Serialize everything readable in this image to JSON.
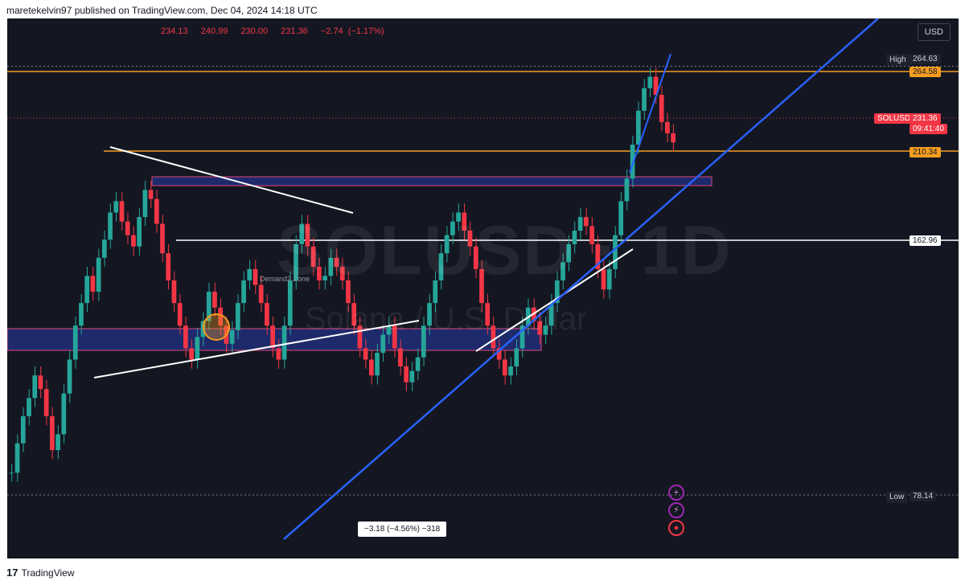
{
  "header": {
    "text": "maretekelvin97 published on TradingView.com, Dec 04, 2024 14:18 UTC"
  },
  "ohlc": {
    "open": "234.13",
    "high": "240.99",
    "low": "230.00",
    "close": "231.36",
    "change": "−2.74 (−1.17%)"
  },
  "currency": "USD",
  "watermark": {
    "symbol": "SOLUSD · 1D",
    "name": "Solana / U.S. Dollar"
  },
  "labels": {
    "high_label": "High",
    "high_value": "264.63",
    "level_264": "264.58",
    "symbol_tag": "SOLUSD",
    "last_price": "231.36",
    "countdown": "09:41:40",
    "level_210": "210.34",
    "level_162": "162.96",
    "low_label": "Low",
    "low_value": "78.14"
  },
  "demand_text": "Demand2 Zone",
  "measure_text": "−3.18 (−4.56%) −318",
  "icons": {
    "add": "+",
    "flash": "⚡",
    "flag": "●"
  },
  "footer": {
    "logo": "17",
    "brand": "TradingView"
  },
  "colors": {
    "bg": "#141722",
    "up": "#26a69a",
    "down": "#f23645",
    "orange": "#f59d20",
    "blue": "#2962ff",
    "zone": "#1e2a6b"
  },
  "chart_data": {
    "type": "candlestick",
    "title": "SOLUSD · 1D",
    "ylim": [
      70,
      290
    ],
    "horizontal_levels": [
      264.58,
      210.34,
      162.96
    ],
    "high": 264.63,
    "low": 78.14,
    "last": 231.36,
    "closes_approx": [
      85,
      98,
      110,
      118,
      128,
      122,
      110,
      95,
      102,
      120,
      135,
      150,
      160,
      172,
      165,
      180,
      188,
      200,
      205,
      196,
      190,
      185,
      198,
      210,
      206,
      195,
      182,
      170,
      160,
      150,
      140,
      135,
      145,
      152,
      165,
      158,
      150,
      142,
      148,
      160,
      170,
      175,
      168,
      160,
      150,
      140,
      135,
      150,
      170,
      186,
      195,
      185,
      176,
      170,
      172,
      180,
      176,
      170,
      160,
      150,
      140,
      135,
      128,
      138,
      146,
      150,
      140,
      132,
      125,
      130,
      136,
      150,
      160,
      170,
      182,
      190,
      196,
      200,
      192,
      185,
      175,
      160,
      150,
      140,
      135,
      128,
      132,
      140,
      150,
      158,
      152,
      146,
      150,
      160,
      170,
      178,
      186,
      192,
      198,
      194,
      186,
      175,
      166,
      175,
      190,
      205,
      215,
      230,
      245,
      255,
      260,
      252,
      240,
      235,
      231
    ]
  }
}
